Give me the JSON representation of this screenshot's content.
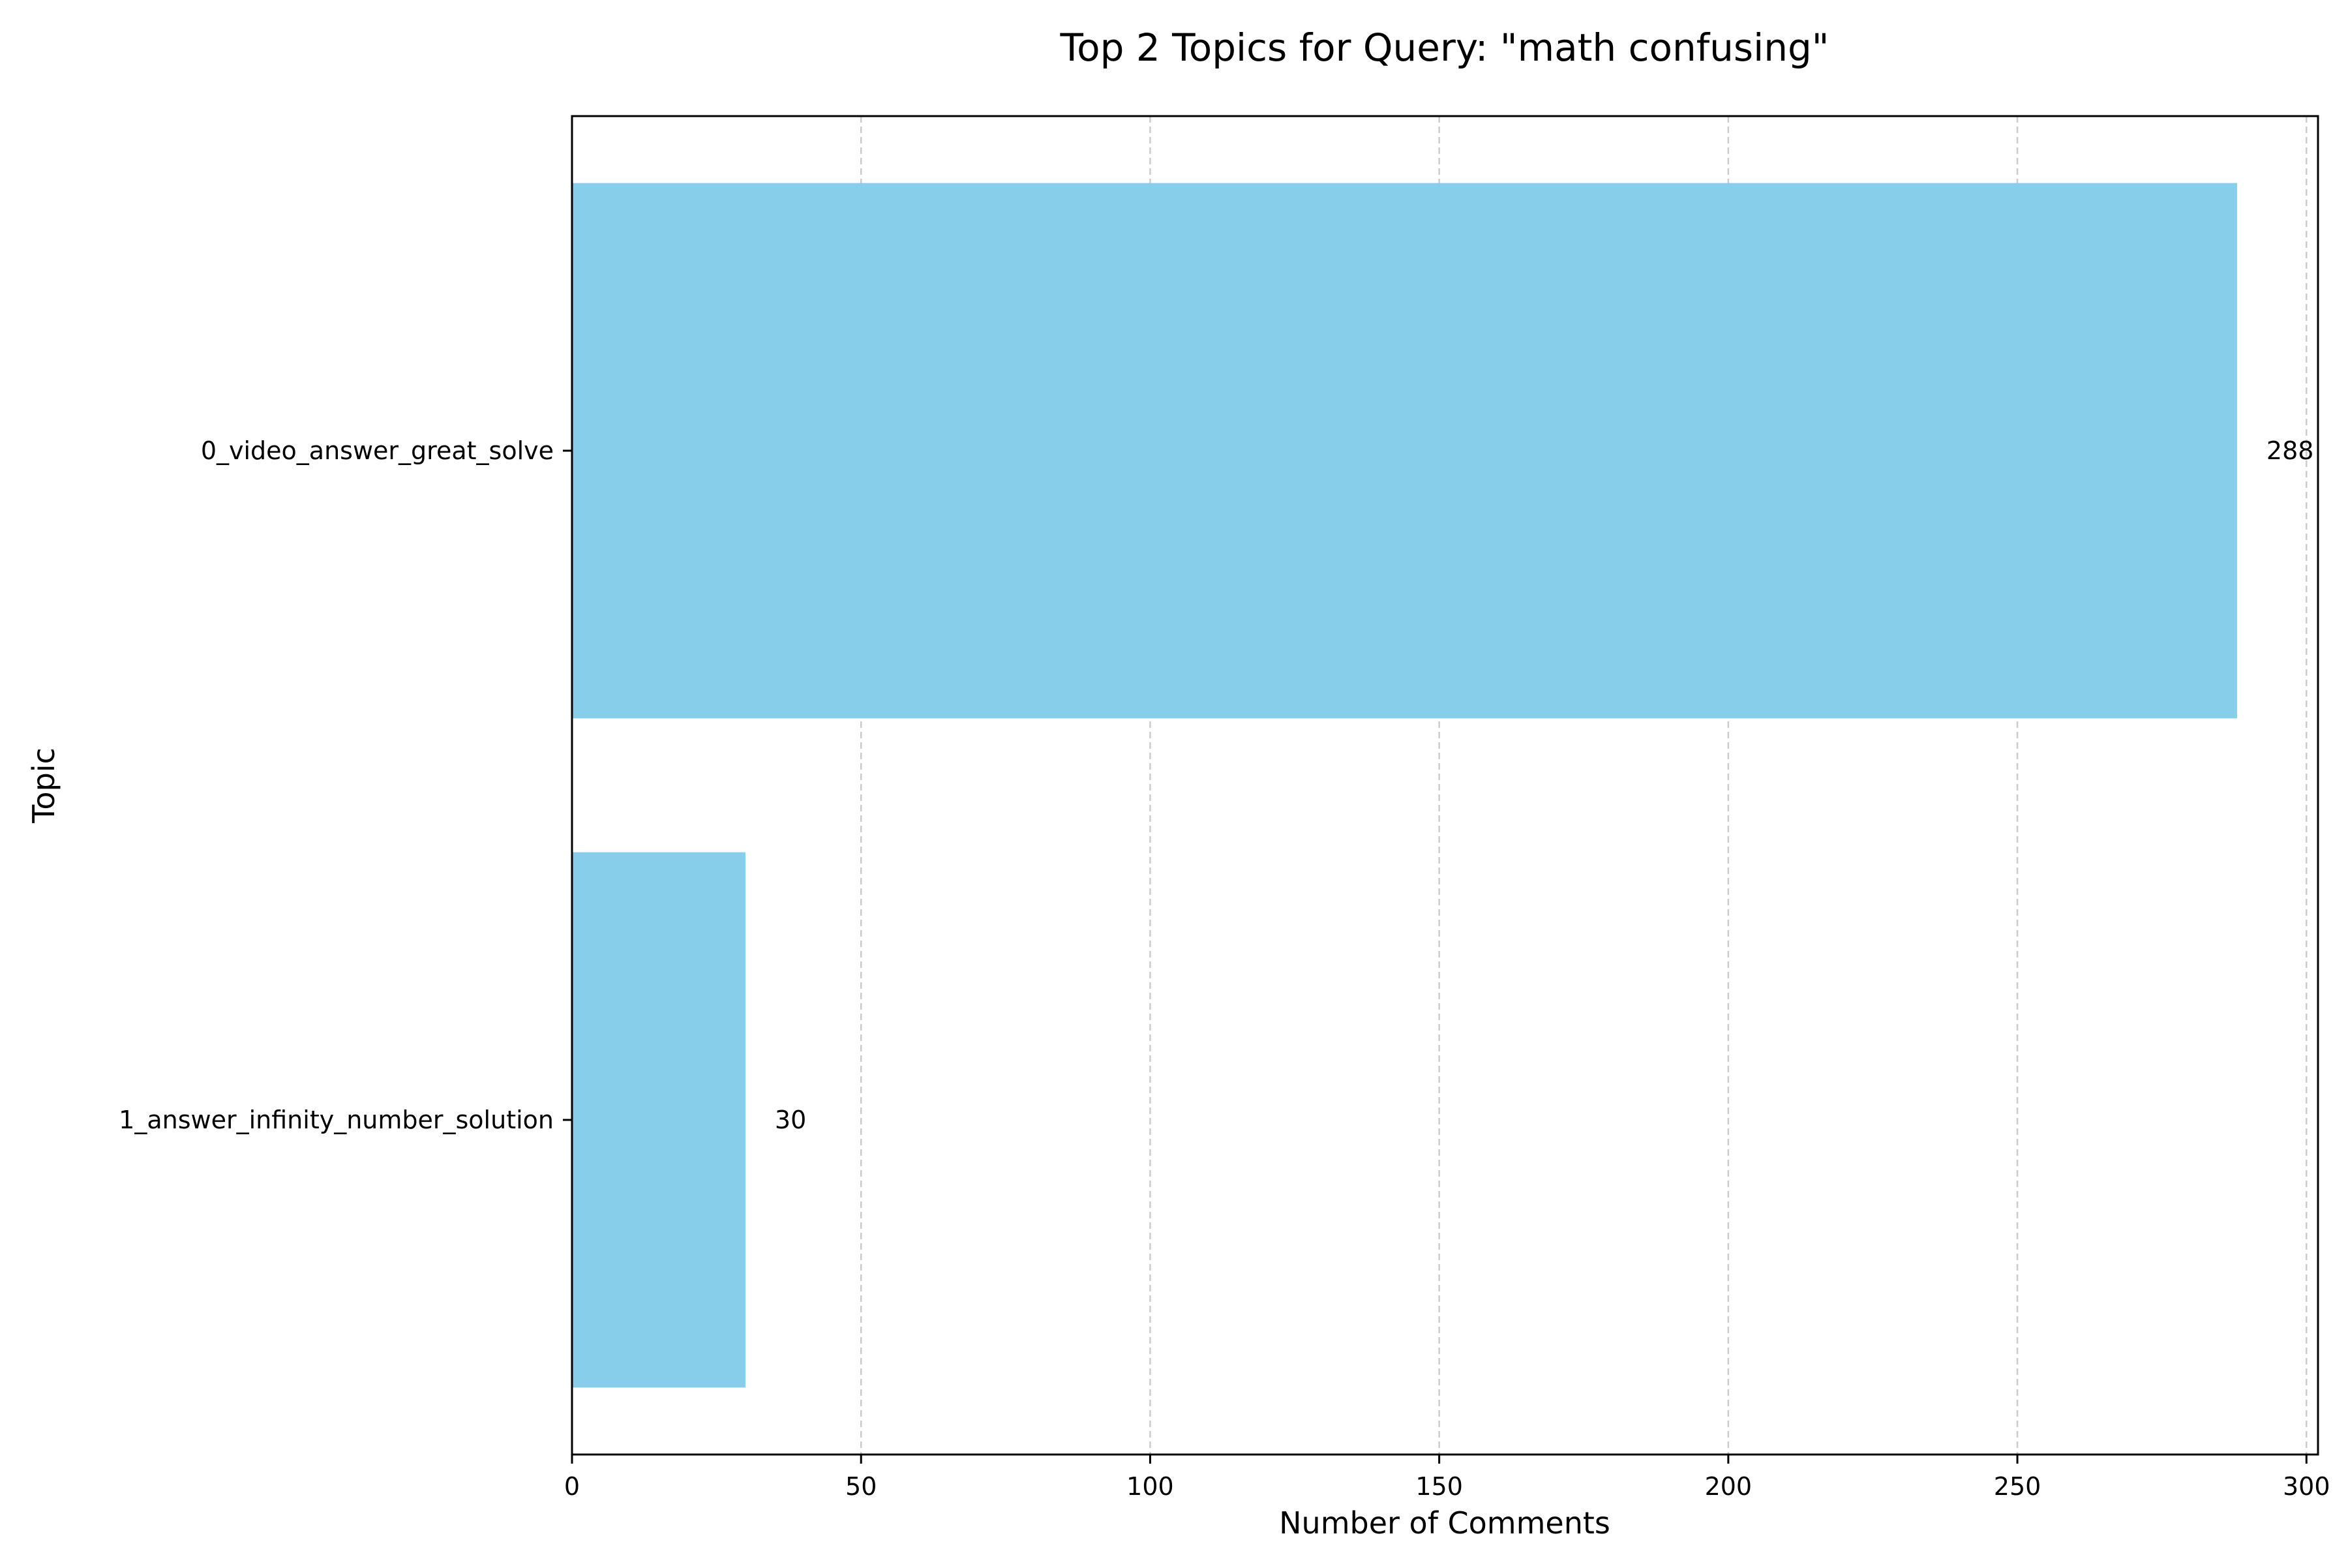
{
  "chart_data": {
    "type": "bar",
    "orientation": "horizontal",
    "title": "Top 2 Topics for Query: \"math confusing\"",
    "xlabel": "Number of Comments",
    "ylabel": "Topic",
    "categories": [
      "0_video_answer_great_solve",
      "1_answer_infinity_number_solution"
    ],
    "values": [
      288,
      30
    ],
    "value_labels": [
      "288",
      "30"
    ],
    "xlim": [
      0,
      302
    ],
    "xticks": [
      0,
      50,
      100,
      150,
      200,
      250,
      300
    ],
    "xtick_labels": [
      "0",
      "50",
      "100",
      "150",
      "200",
      "250",
      "300"
    ],
    "grid": "x-axis dashed",
    "legend": "none",
    "colors": {
      "bar": "#87CEEB",
      "grid": "#cccccc",
      "axis": "#000000"
    }
  }
}
